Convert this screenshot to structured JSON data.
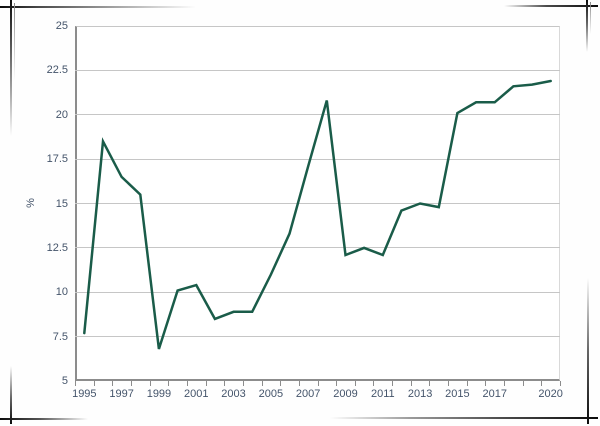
{
  "page": {
    "background": "#fefefe",
    "frame_style": "sketched photo frame with crossed corner strokes"
  },
  "chart_data": {
    "type": "line",
    "title": "",
    "xlabel": "",
    "ylabel": "%",
    "x": [
      1995,
      1996,
      1997,
      1998,
      1999,
      2000,
      2001,
      2002,
      2003,
      2004,
      2005,
      2006,
      2007,
      2008,
      2009,
      2010,
      2011,
      2012,
      2013,
      2014,
      2015,
      2016,
      2017,
      2018,
      2019,
      2020
    ],
    "values": [
      7.7,
      18.5,
      16.5,
      15.5,
      6.8,
      10.1,
      10.4,
      8.5,
      8.9,
      8.9,
      11.0,
      13.3,
      17.1,
      20.8,
      12.1,
      12.5,
      12.1,
      14.6,
      15.0,
      14.8,
      20.1,
      20.7,
      20.7,
      21.6,
      21.7,
      21.9
    ],
    "ylim": [
      5,
      25
    ],
    "ytick_step": 2.5,
    "y_tick_labels": [
      "25",
      "22.5",
      "20",
      "17.5",
      "15",
      "12.5",
      "10",
      "7.5",
      "5"
    ],
    "x_tick_labels_shown": [
      "1995",
      "1997",
      "1999",
      "2001",
      "2003",
      "2005",
      "2007",
      "2009",
      "2011",
      "2013",
      "2015",
      "2017",
      "2020"
    ],
    "grid": true,
    "legend": "none",
    "colors": {
      "line": "#1a5c49",
      "text": "#44546a",
      "grid": "#c6c6c6",
      "axis": "#8c8c8c",
      "plot_border": "#d9d9d9"
    }
  }
}
